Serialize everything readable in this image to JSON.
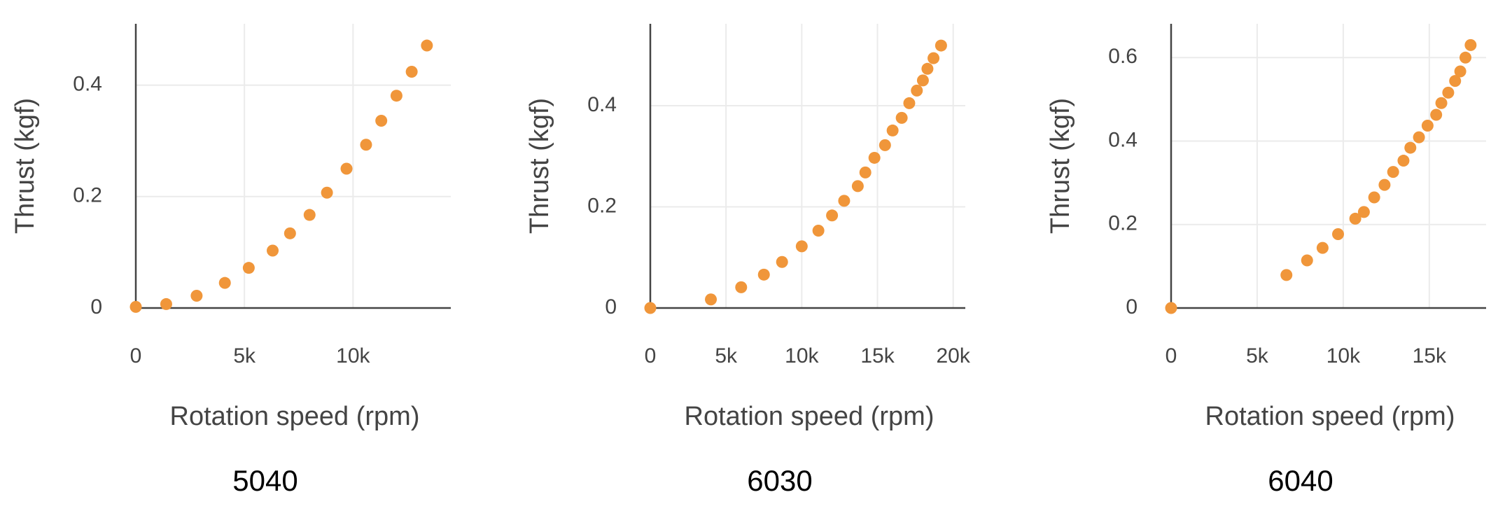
{
  "chart_data": [
    {
      "type": "scatter",
      "caption": "5040",
      "xlabel": "Rotation speed (rpm)",
      "ylabel": "Thrust (kgf)",
      "color": "#f0963a",
      "grid": true,
      "x": [
        0,
        1400,
        2800,
        4100,
        5200,
        6300,
        7100,
        8000,
        8800,
        9700,
        10600,
        11300,
        12000,
        12700,
        13400
      ],
      "y": [
        0.002,
        0.007,
        0.022,
        0.045,
        0.072,
        0.103,
        0.134,
        0.167,
        0.207,
        0.25,
        0.293,
        0.336,
        0.381,
        0.424,
        0.471
      ],
      "xlim": [
        0,
        14500
      ],
      "ylim": [
        0,
        0.51
      ],
      "xticks": [
        0,
        {
          "value": 5000,
          "label": "5k"
        },
        {
          "value": 10000,
          "label": "10k"
        }
      ],
      "yticks": [
        0,
        0.2,
        0.4
      ]
    },
    {
      "type": "scatter",
      "caption": "6030",
      "xlabel": "Rotation speed (rpm)",
      "ylabel": "Thrust (kgf)",
      "color": "#f0963a",
      "grid": true,
      "x": [
        0,
        4000,
        6000,
        7500,
        8700,
        10000,
        11100,
        12000,
        12800,
        13700,
        14200,
        14800,
        15500,
        16000,
        16600,
        17100,
        17600,
        18000,
        18300,
        18700,
        19200
      ],
      "y": [
        0,
        0.017,
        0.041,
        0.066,
        0.091,
        0.122,
        0.153,
        0.183,
        0.212,
        0.241,
        0.268,
        0.297,
        0.322,
        0.351,
        0.376,
        0.405,
        0.43,
        0.45,
        0.473,
        0.494,
        0.519
      ],
      "xlim": [
        0,
        20800
      ],
      "ylim": [
        0,
        0.562
      ],
      "xticks": [
        0,
        {
          "value": 5000,
          "label": "5k"
        },
        {
          "value": 10000,
          "label": "10k"
        },
        {
          "value": 15000,
          "label": "15k"
        },
        {
          "value": 20000,
          "label": "20k"
        }
      ],
      "yticks": [
        0,
        0.2,
        0.4
      ]
    },
    {
      "type": "scatter",
      "caption": "6040",
      "xlabel": "Rotation speed (rpm)",
      "ylabel": "Thrust (kgf)",
      "color": "#f0963a",
      "grid": true,
      "x": [
        0,
        6700,
        7900,
        8800,
        9700,
        10700,
        11200,
        11800,
        12400,
        12900,
        13500,
        13900,
        14400,
        14900,
        15400,
        15700,
        16100,
        16500,
        16800,
        17100,
        17400
      ],
      "y": [
        0,
        0.079,
        0.114,
        0.144,
        0.177,
        0.214,
        0.23,
        0.265,
        0.295,
        0.326,
        0.353,
        0.384,
        0.409,
        0.437,
        0.463,
        0.491,
        0.516,
        0.544,
        0.567,
        0.6,
        0.63
      ],
      "xlim": [
        0,
        18300
      ],
      "ylim": [
        0,
        0.681
      ],
      "xticks": [
        0,
        {
          "value": 5000,
          "label": "5k"
        },
        {
          "value": 10000,
          "label": "10k"
        },
        {
          "value": 15000,
          "label": "15k"
        }
      ],
      "yticks": [
        0,
        0.2,
        0.4,
        0.6
      ]
    }
  ]
}
